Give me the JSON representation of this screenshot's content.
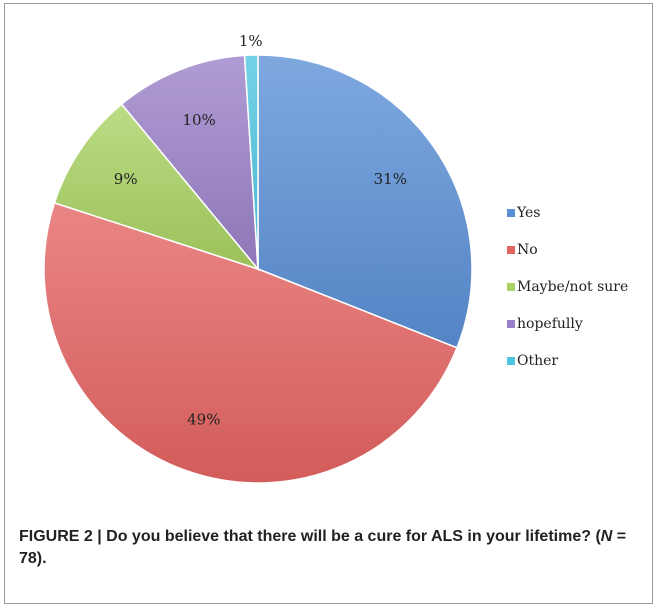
{
  "chart_data": {
    "type": "pie",
    "title": "",
    "categories": [
      "Yes",
      "No",
      "Maybe/not sure",
      "hopefully",
      "Other"
    ],
    "values": [
      31,
      49,
      9,
      10,
      1
    ],
    "labels": [
      "31%",
      "49%",
      "9%",
      "10%",
      "1%"
    ],
    "colors": [
      "#5b8fd6",
      "#e46462",
      "#a9d262",
      "#9a80c8",
      "#4fc6e0"
    ],
    "legend_position": "right",
    "start_angle": "12 o'clock, clockwise"
  },
  "caption": {
    "prefix": "FIGURE 2 | Do you believe that there will be a cure for ALS in your lifetime? (",
    "n_symbol": "N",
    "n_value": " = 78)."
  }
}
